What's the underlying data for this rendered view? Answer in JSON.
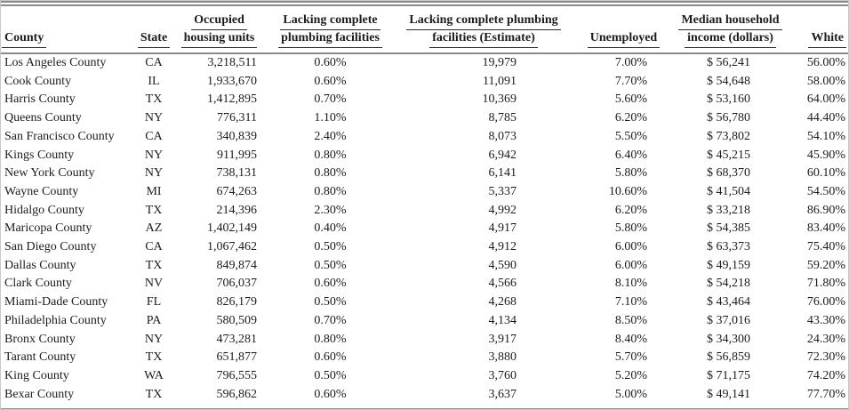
{
  "table": {
    "columns": [
      {
        "id": "county",
        "lines": [
          "County"
        ]
      },
      {
        "id": "state",
        "lines": [
          "State"
        ]
      },
      {
        "id": "occupied-housing-units",
        "lines": [
          "Occupied",
          "housing units"
        ]
      },
      {
        "id": "lacking-plumbing-pct",
        "lines": [
          "Lacking complete",
          "plumbing facilities"
        ]
      },
      {
        "id": "lacking-plumbing-estimate",
        "lines": [
          "Lacking complete plumbing",
          "facilities (Estimate)"
        ]
      },
      {
        "id": "unemployed",
        "lines": [
          "Unemployed"
        ]
      },
      {
        "id": "median-household-income",
        "lines": [
          "Median household",
          "income (dollars)"
        ]
      },
      {
        "id": "white",
        "lines": [
          "White"
        ]
      }
    ],
    "rows": [
      [
        "Los Angeles County",
        "CA",
        "3,218,511",
        "0.60%",
        "19,979",
        "7.00%",
        "$ 56,241",
        "56.00%"
      ],
      [
        "Cook County",
        "IL",
        "1,933,670",
        "0.60%",
        "11,091",
        "7.70%",
        "$ 54,648",
        "58.00%"
      ],
      [
        "Harris County",
        "TX",
        "1,412,895",
        "0.70%",
        "10,369",
        "5.60%",
        "$ 53,160",
        "64.00%"
      ],
      [
        "Queens County",
        "NY",
        "776,311",
        "1.10%",
        "8,785",
        "6.20%",
        "$ 56,780",
        "44.40%"
      ],
      [
        "San Francisco County",
        "CA",
        "340,839",
        "2.40%",
        "8,073",
        "5.50%",
        "$ 73,802",
        "54.10%"
      ],
      [
        "Kings County",
        "NY",
        "911,995",
        "0.80%",
        "6,942",
        "6.40%",
        "$ 45,215",
        "45.90%"
      ],
      [
        "New York County",
        "NY",
        "738,131",
        "0.80%",
        "6,141",
        "5.80%",
        "$ 68,370",
        "60.10%"
      ],
      [
        "Wayne County",
        "MI",
        "674,263",
        "0.80%",
        "5,337",
        "10.60%",
        "$ 41,504",
        "54.50%"
      ],
      [
        "Hidalgo County",
        "TX",
        "214,396",
        "2.30%",
        "4,992",
        "6.20%",
        "$ 33,218",
        "86.90%"
      ],
      [
        "Maricopa County",
        "AZ",
        "1,402,149",
        "0.40%",
        "4,917",
        "5.80%",
        "$ 54,385",
        "83.40%"
      ],
      [
        "San Diego County",
        "CA",
        "1,067,462",
        "0.50%",
        "4,912",
        "6.00%",
        "$ 63,373",
        "75.40%"
      ],
      [
        "Dallas County",
        "TX",
        "849,874",
        "0.50%",
        "4,590",
        "6.00%",
        "$ 49,159",
        "59.20%"
      ],
      [
        "Clark County",
        "NV",
        "706,037",
        "0.60%",
        "4,566",
        "8.10%",
        "$ 54,218",
        "71.80%"
      ],
      [
        "Miami-Dade County",
        "FL",
        "826,179",
        "0.50%",
        "4,268",
        "7.10%",
        "$ 43,464",
        "76.00%"
      ],
      [
        "Philadelphia County",
        "PA",
        "580,509",
        "0.70%",
        "4,134",
        "8.50%",
        "$ 37,016",
        "43.30%"
      ],
      [
        "Bronx County",
        "NY",
        "473,281",
        "0.80%",
        "3,917",
        "8.40%",
        "$ 34,300",
        "24.30%"
      ],
      [
        "Tarant County",
        "TX",
        "651,877",
        "0.60%",
        "3,880",
        "5.70%",
        "$ 56,859",
        "72.30%"
      ],
      [
        "King County",
        "WA",
        "796,555",
        "0.50%",
        "3,760",
        "5.20%",
        "$ 71,175",
        "74.20%"
      ],
      [
        "Bexar County",
        "TX",
        "596,862",
        "0.60%",
        "3,637",
        "5.00%",
        "$ 49,141",
        "77.70%"
      ]
    ]
  },
  "rules": {
    "rule_color": "#8a8a8a",
    "underline_color": "#2a2a2a",
    "text_color": "#1c1c1c"
  }
}
